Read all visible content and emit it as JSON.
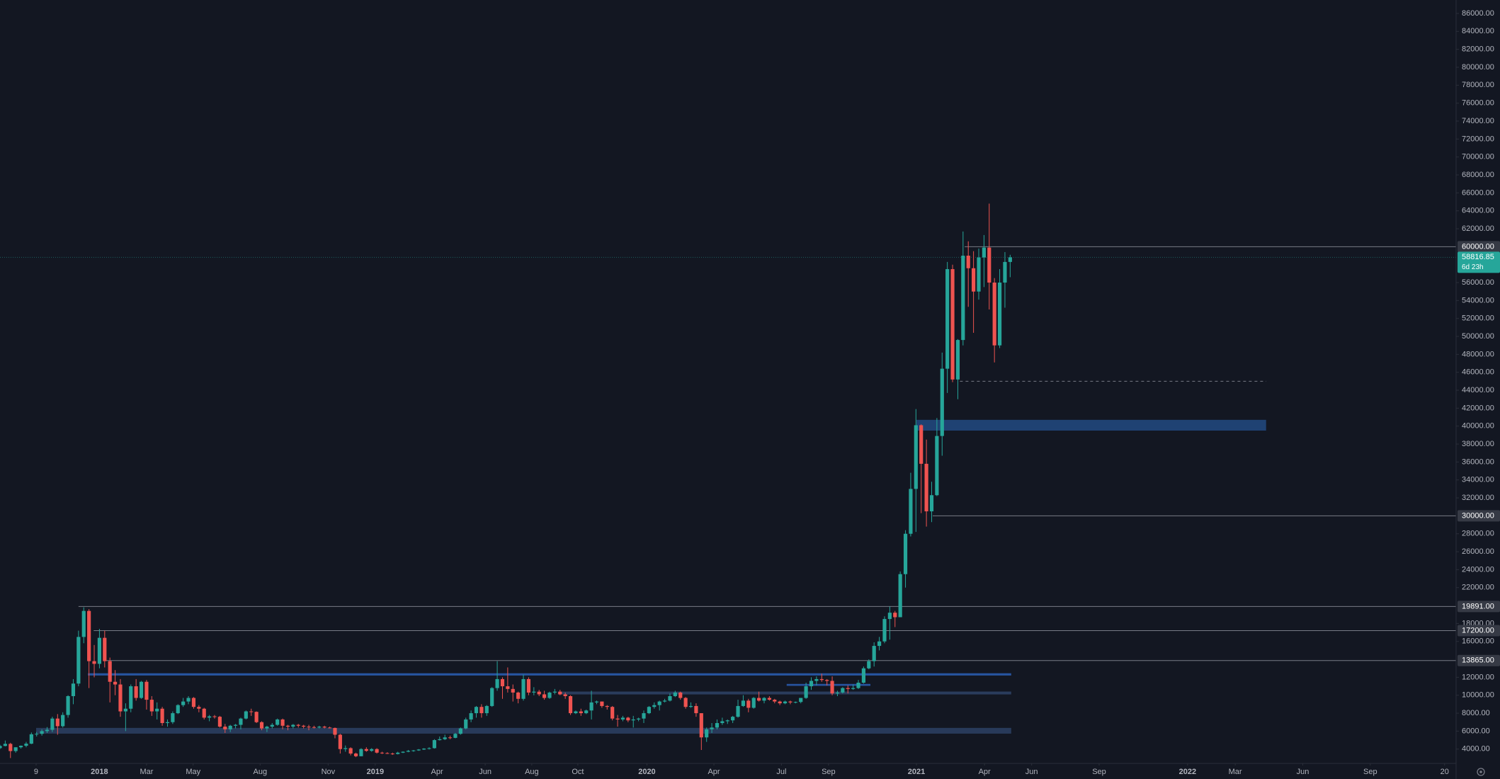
{
  "chart_data": {
    "type": "candlestick",
    "up_color": "#26a69a",
    "down_color": "#ef5350",
    "level_color": "#787b86",
    "grid": false,
    "xlim": [
      -19,
      259.2
    ],
    "ylim": [
      2400,
      87500
    ],
    "x": [
      -19,
      -18,
      -17,
      -16,
      -15,
      -14,
      -13,
      -12,
      -11,
      -10,
      -9,
      -8,
      -7,
      -6,
      -5,
      -4,
      -3,
      -2,
      -1,
      0,
      1,
      2,
      3,
      4,
      5,
      6,
      7,
      8,
      9,
      10,
      11,
      12,
      13,
      14,
      15,
      16,
      17,
      18,
      19,
      20,
      21,
      22,
      23,
      24,
      25,
      26,
      27,
      28,
      29,
      30,
      31,
      32,
      33,
      34,
      35,
      36,
      37,
      38,
      39,
      40,
      41,
      42,
      43,
      44,
      45,
      46,
      47,
      48,
      49,
      50,
      51,
      52,
      53,
      54,
      55,
      56,
      57,
      58,
      59,
      60,
      61,
      62,
      63,
      64,
      65,
      66,
      67,
      68,
      69,
      70,
      71,
      72,
      73,
      74,
      75,
      76,
      77,
      78,
      79,
      80,
      81,
      82,
      83,
      84,
      85,
      86,
      87,
      88,
      89,
      90,
      91,
      92,
      93,
      94,
      95,
      96,
      97,
      98,
      99,
      100,
      101,
      102,
      103,
      104,
      105,
      106,
      107,
      108,
      109,
      110,
      111,
      112,
      113,
      114,
      115,
      116,
      117,
      118,
      119,
      120,
      121,
      122,
      123,
      124,
      125,
      126,
      127,
      128,
      129,
      130,
      131,
      132,
      133,
      134,
      135,
      136,
      137,
      138,
      139,
      140,
      141,
      142,
      143,
      144,
      145,
      146,
      147,
      148,
      149,
      150,
      151,
      152,
      153,
      154,
      155,
      156,
      157,
      158,
      159,
      160,
      161,
      162,
      163,
      164,
      165,
      166,
      167,
      168,
      169,
      170,
      171,
      172,
      173,
      174
    ],
    "open": [
      4100,
      4350,
      4580,
      3780,
      4200,
      4370,
      4600,
      5650,
      5700,
      6000,
      6150,
      7400,
      6550,
      7800,
      9900,
      11300,
      16500,
      19400,
      13800,
      13500,
      16400,
      13800,
      11500,
      11200,
      8200,
      8500,
      11000,
      9700,
      11500,
      9500,
      8200,
      8500,
      6900,
      7000,
      8000,
      8900,
      9300,
      9700,
      8700,
      8500,
      7500,
      7650,
      7600,
      6500,
      6200,
      6600,
      6700,
      7400,
      8200,
      8150,
      7000,
      6300,
      6500,
      6700,
      7300,
      6600,
      6500,
      6700,
      6600,
      6500,
      6450,
      6400,
      6500,
      6400,
      6350,
      5600,
      4000,
      4100,
      3500,
      3200,
      4000,
      3800,
      4000,
      3600,
      3550,
      3500,
      3450,
      3600,
      3700,
      3800,
      3850,
      3950,
      4050,
      4100,
      5000,
      5100,
      5300,
      5250,
      5700,
      6300,
      7300,
      8000,
      8700,
      8000,
      8800,
      10800,
      11800,
      11000,
      10700,
      10300,
      9600,
      11800,
      10300,
      10400,
      10100,
      9700,
      10300,
      10400,
      10100,
      9900,
      8000,
      8200,
      8000,
      8300,
      9200,
      9300,
      8800,
      8700,
      7400,
      7300,
      7500,
      7200,
      7300,
      7400,
      8000,
      8700,
      8900,
      9300,
      9400,
      9900,
      10300,
      9700,
      8700,
      8800,
      8000,
      5300,
      6200,
      6400,
      6900,
      7100,
      7200,
      7600,
      8800,
      9400,
      8600,
      9700,
      9400,
      9700,
      9500,
      9300,
      9100,
      9300,
      9200,
      9250,
      9700,
      11000,
      11600,
      11800,
      11700,
      11600,
      10200,
      10300,
      10800,
      10700,
      10800,
      11400,
      13000,
      13800,
      15500,
      16000,
      18500,
      19200,
      18700,
      23500,
      28000,
      33000,
      40100,
      35800,
      30500,
      32300,
      38900,
      46400,
      57500,
      45200,
      49600,
      59000,
      57600,
      55000,
      58800,
      59900,
      56000,
      49000,
      56000,
      58300
    ],
    "high": [
      4480,
      4950,
      4700,
      4200,
      4400,
      4800,
      5850,
      5900,
      6200,
      6450,
      7600,
      7900,
      8100,
      10000,
      11800,
      17200,
      19800,
      19600,
      15600,
      17400,
      17200,
      14200,
      12800,
      11800,
      9100,
      11200,
      11800,
      11600,
      11700,
      9900,
      9200,
      8700,
      7300,
      8200,
      9000,
      9700,
      9900,
      9800,
      8900,
      8600,
      7800,
      7800,
      7700,
      6800,
      6700,
      6800,
      7500,
      8300,
      8500,
      8200,
      7100,
      6600,
      6900,
      7400,
      7400,
      6700,
      6800,
      6800,
      6700,
      6700,
      6600,
      6600,
      6600,
      6500,
      6400,
      5700,
      4400,
      4200,
      3600,
      4100,
      4200,
      4100,
      4100,
      3700,
      3650,
      3600,
      3700,
      3750,
      3900,
      3900,
      4000,
      4100,
      4200,
      5100,
      5400,
      5600,
      5500,
      5800,
      6400,
      7500,
      8300,
      8800,
      9000,
      8900,
      10900,
      13800,
      12000,
      13100,
      11200,
      10400,
      12300,
      12000,
      10900,
      10600,
      10500,
      10400,
      10700,
      10600,
      10300,
      10000,
      8300,
      8500,
      8400,
      10500,
      9400,
      9300,
      8900,
      8800,
      7800,
      7700,
      7600,
      7700,
      7500,
      8300,
      8800,
      9200,
      9400,
      9600,
      10200,
      10500,
      10400,
      9800,
      9200,
      9100,
      8000,
      6400,
      6900,
      7300,
      7500,
      7300,
      7700,
      9500,
      10000,
      9600,
      9800,
      10400,
      9800,
      9900,
      9600,
      9400,
      9400,
      9400,
      9300,
      9700,
      11400,
      12000,
      12100,
      12400,
      11800,
      12100,
      10500,
      10900,
      11100,
      11200,
      11700,
      13200,
      14000,
      15900,
      16500,
      18800,
      19900,
      19400,
      23800,
      28400,
      34800,
      41900,
      40200,
      38500,
      33800,
      40900,
      48200,
      58300,
      58000,
      49700,
      61700,
      60600,
      59500,
      59800,
      61300,
      64800,
      56500,
      57500,
      59400,
      59100
    ],
    "low": [
      4000,
      4300,
      3000,
      3600,
      4050,
      4200,
      4550,
      5400,
      5500,
      5800,
      5900,
      5600,
      6400,
      7500,
      9000,
      11000,
      15800,
      10800,
      12000,
      13000,
      13100,
      9200,
      10000,
      7600,
      6000,
      8100,
      9400,
      9600,
      8400,
      7700,
      7300,
      6600,
      6500,
      6800,
      7900,
      8700,
      9000,
      8500,
      8100,
      7300,
      7100,
      7400,
      6400,
      5800,
      5900,
      6300,
      6200,
      7300,
      7700,
      6900,
      6100,
      5900,
      6300,
      6600,
      6200,
      6100,
      6300,
      6400,
      6300,
      6100,
      6300,
      6300,
      6300,
      6300,
      5200,
      3500,
      3700,
      3300,
      3100,
      3200,
      3700,
      3700,
      3500,
      3450,
      3450,
      3350,
      3400,
      3550,
      3650,
      3700,
      3800,
      3900,
      3950,
      4050,
      4950,
      5000,
      5100,
      5200,
      5600,
      6200,
      7000,
      7500,
      7500,
      7700,
      8700,
      10500,
      9600,
      10300,
      9300,
      9100,
      9400,
      10000,
      10000,
      9900,
      9500,
      9600,
      10100,
      10000,
      9600,
      7800,
      7900,
      7700,
      7900,
      7300,
      9000,
      8600,
      8400,
      7200,
      6500,
      7100,
      7000,
      6400,
      7100,
      6900,
      7900,
      8500,
      8300,
      9200,
      9300,
      9800,
      9500,
      8500,
      8600,
      7600,
      3900,
      4800,
      5800,
      6200,
      6700,
      6800,
      6900,
      7500,
      8700,
      8100,
      8500,
      9300,
      9100,
      9400,
      9100,
      8900,
      9000,
      9000,
      9100,
      9100,
      9600,
      10600,
      11100,
      11500,
      11100,
      10000,
      9900,
      10200,
      10200,
      10600,
      10700,
      11300,
      12900,
      13200,
      15000,
      15800,
      16200,
      17600,
      18700,
      22000,
      27700,
      28200,
      30300,
      28800,
      29300,
      32200,
      36700,
      43700,
      44900,
      43000,
      49000,
      53300,
      50400,
      54100,
      55500,
      53000,
      47100,
      48700,
      53200,
      56600
    ],
    "close": [
      4350,
      4580,
      3780,
      4200,
      4370,
      4600,
      5650,
      5700,
      6000,
      6150,
      7400,
      6550,
      7800,
      9900,
      11300,
      16500,
      19400,
      13800,
      13500,
      16400,
      13800,
      11500,
      11200,
      8200,
      8500,
      11000,
      9700,
      11500,
      9500,
      8200,
      8500,
      6900,
      7000,
      8000,
      8900,
      9300,
      9700,
      8700,
      8500,
      7500,
      7650,
      7600,
      6500,
      6200,
      6600,
      6700,
      7400,
      8200,
      8150,
      7000,
      6300,
      6500,
      6700,
      7300,
      6600,
      6500,
      6700,
      6600,
      6500,
      6450,
      6400,
      6500,
      6400,
      6350,
      5600,
      4000,
      4100,
      3500,
      3200,
      4000,
      3800,
      4000,
      3600,
      3550,
      3500,
      3450,
      3600,
      3700,
      3800,
      3850,
      3950,
      4050,
      4100,
      5000,
      5100,
      5300,
      5250,
      5700,
      6300,
      7300,
      8000,
      8700,
      8000,
      8800,
      10800,
      11800,
      11000,
      10700,
      10300,
      9600,
      11800,
      10300,
      10400,
      10100,
      9700,
      10300,
      10400,
      10100,
      9900,
      8000,
      8200,
      8000,
      8300,
      9200,
      9300,
      8800,
      8700,
      7400,
      7300,
      7500,
      7200,
      7300,
      7400,
      8000,
      8700,
      8900,
      9300,
      9400,
      9900,
      10300,
      9700,
      8700,
      8800,
      8000,
      5300,
      6200,
      6400,
      6900,
      7100,
      7200,
      7600,
      8800,
      9400,
      8600,
      9700,
      9400,
      9700,
      9500,
      9300,
      9100,
      9300,
      9200,
      9250,
      9700,
      11000,
      11600,
      11800,
      11700,
      11600,
      10200,
      10300,
      10800,
      10700,
      10800,
      11400,
      13000,
      13800,
      15500,
      16000,
      18500,
      19200,
      18700,
      23500,
      28000,
      33000,
      40100,
      35800,
      30500,
      32300,
      38900,
      46400,
      57500,
      45200,
      49600,
      59000,
      57600,
      55000,
      58800,
      59900,
      56000,
      49000,
      56000,
      58300,
      58816.85
    ],
    "xticks": [
      {
        "value": -12.1,
        "label": "9"
      },
      {
        "value": 0,
        "label": "2018"
      },
      {
        "value": 9.0,
        "label": "Mar"
      },
      {
        "value": 17.9,
        "label": "May"
      },
      {
        "value": 30.7,
        "label": "Aug"
      },
      {
        "value": 43.7,
        "label": "Nov"
      },
      {
        "value": 52.7,
        "label": "2019"
      },
      {
        "value": 64.5,
        "label": "Apr"
      },
      {
        "value": 73.7,
        "label": "Jun"
      },
      {
        "value": 82.6,
        "label": "Aug"
      },
      {
        "value": 91.4,
        "label": "Oct"
      },
      {
        "value": 104.6,
        "label": "2020"
      },
      {
        "value": 117.4,
        "label": "Apr"
      },
      {
        "value": 130.3,
        "label": "Jul"
      },
      {
        "value": 139.3,
        "label": "Sep"
      },
      {
        "value": 156.1,
        "label": "2021"
      },
      {
        "value": 169.1,
        "label": "Apr"
      },
      {
        "value": 178.1,
        "label": "Jun"
      },
      {
        "value": 191.0,
        "label": "Sep"
      },
      {
        "value": 207.9,
        "label": "2022"
      },
      {
        "value": 217.0,
        "label": "Mar"
      },
      {
        "value": 229.9,
        "label": "Jun"
      },
      {
        "value": 242.8,
        "label": "Sep"
      },
      {
        "value": 257.0,
        "label": "20"
      }
    ],
    "yticks": [
      {
        "value": 4000,
        "label": "4000.00"
      },
      {
        "value": 6000,
        "label": "6000.00"
      },
      {
        "value": 8000,
        "label": "8000.00"
      },
      {
        "value": 10000,
        "label": "10000.00"
      },
      {
        "value": 12000,
        "label": "12000.00"
      },
      {
        "value": 16000,
        "label": "16000.00"
      },
      {
        "value": 18000,
        "label": "18000.00"
      },
      {
        "value": 22000,
        "label": "22000.00"
      },
      {
        "value": 24000,
        "label": "24000.00"
      },
      {
        "value": 26000,
        "label": "26000.00"
      },
      {
        "value": 28000,
        "label": "28000.00"
      },
      {
        "value": 32000,
        "label": "32000.00"
      },
      {
        "value": 34000,
        "label": "34000.00"
      },
      {
        "value": 36000,
        "label": "36000.00"
      },
      {
        "value": 38000,
        "label": "38000.00"
      },
      {
        "value": 40000,
        "label": "40000.00"
      },
      {
        "value": 42000,
        "label": "42000.00"
      },
      {
        "value": 44000,
        "label": "44000.00"
      },
      {
        "value": 46000,
        "label": "46000.00"
      },
      {
        "value": 48000,
        "label": "48000.00"
      },
      {
        "value": 50000,
        "label": "50000.00"
      },
      {
        "value": 52000,
        "label": "52000.00"
      },
      {
        "value": 54000,
        "label": "54000.00"
      },
      {
        "value": 56000,
        "label": "56000.00"
      },
      {
        "value": 62000,
        "label": "62000.00"
      },
      {
        "value": 64000,
        "label": "64000.00"
      },
      {
        "value": 66000,
        "label": "66000.00"
      },
      {
        "value": 68000,
        "label": "68000.00"
      },
      {
        "value": 70000,
        "label": "70000.00"
      },
      {
        "value": 72000,
        "label": "72000.00"
      },
      {
        "value": 74000,
        "label": "74000.00"
      },
      {
        "value": 76000,
        "label": "76000.00"
      },
      {
        "value": 78000,
        "label": "78000.00"
      },
      {
        "value": 80000,
        "label": "80000.00"
      },
      {
        "value": 82000,
        "label": "82000.00"
      },
      {
        "value": 84000,
        "label": "84000.00"
      },
      {
        "value": 86000,
        "label": "86000.00"
      }
    ],
    "levels": [
      {
        "value": 60000,
        "label": "60000.00",
        "start": 165.3
      },
      {
        "value": 30000,
        "label": "30000.00",
        "start": 159.2
      },
      {
        "value": 19891,
        "label": "19891.00",
        "start": -4.0
      },
      {
        "value": 17200,
        "label": "17200.00",
        "start": -1.1
      },
      {
        "value": 13865,
        "label": "13865.00",
        "start": 1.1
      },
      {
        "value": 45000,
        "start": 164.4,
        "end": 222.9,
        "dashed": true
      }
    ],
    "zones": [
      {
        "from": 39500,
        "to": 40700,
        "start": 156.1,
        "end": 222.9,
        "color": "#1f4273"
      },
      {
        "from": 12200,
        "to": 12450,
        "start": -2.2,
        "end": 174.2,
        "color": "#2754a0"
      },
      {
        "from": 10090,
        "to": 10410,
        "start": 87.6,
        "end": 174.2,
        "color": "#2a3c5c"
      },
      {
        "from": 5720,
        "to": 6360,
        "start": -12.1,
        "end": 174.2,
        "color": "#283a5a"
      },
      {
        "from": 11050,
        "to": 11260,
        "start": 131.3,
        "end": 147.3,
        "color": "#2754a0"
      }
    ],
    "last_price": 58816.85,
    "countdown": "6d 23h",
    "last_color": "#26a69a"
  }
}
